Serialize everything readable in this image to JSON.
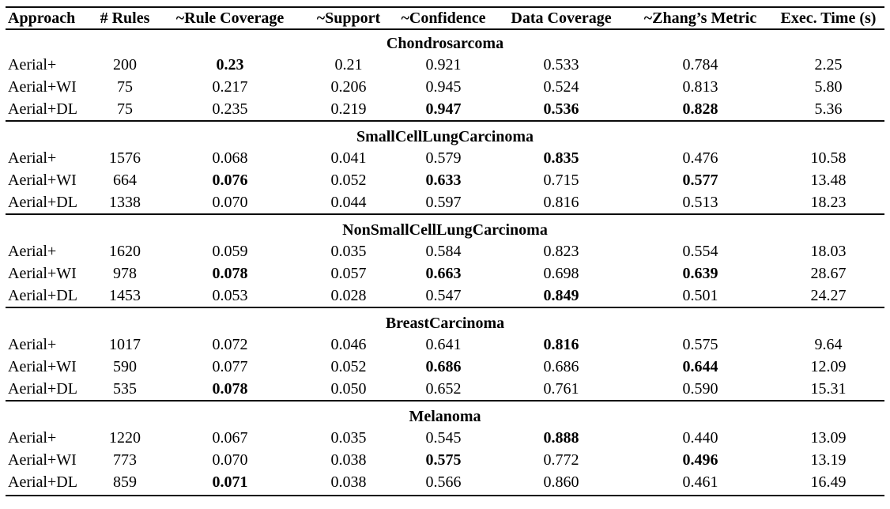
{
  "table": {
    "columns": [
      "Approach",
      "# Rules",
      "~Rule Coverage",
      "~Support",
      "~Confidence",
      "Data Coverage",
      "~Zhang’s Metric",
      "Exec. Time (s)"
    ],
    "sections": [
      {
        "title": "Chondrosarcoma",
        "rows": [
          {
            "cells": [
              "Aerial+",
              "200",
              "0.23",
              "0.21",
              "0.921",
              "0.533",
              "0.784",
              "2.25"
            ],
            "bold": [
              2
            ]
          },
          {
            "cells": [
              "Aerial+WI",
              "75",
              "0.217",
              "0.206",
              "0.945",
              "0.524",
              "0.813",
              "5.80"
            ],
            "bold": []
          },
          {
            "cells": [
              "Aerial+DL",
              "75",
              "0.235",
              "0.219",
              "0.947",
              "0.536",
              "0.828",
              "5.36"
            ],
            "bold": [
              4,
              5,
              6
            ]
          }
        ]
      },
      {
        "title": "SmallCellLungCarcinoma",
        "rows": [
          {
            "cells": [
              "Aerial+",
              "1576",
              "0.068",
              "0.041",
              "0.579",
              "0.835",
              "0.476",
              "10.58"
            ],
            "bold": [
              5
            ]
          },
          {
            "cells": [
              "Aerial+WI",
              "664",
              "0.076",
              "0.052",
              "0.633",
              "0.715",
              "0.577",
              "13.48"
            ],
            "bold": [
              2,
              4,
              6
            ]
          },
          {
            "cells": [
              "Aerial+DL",
              "1338",
              "0.070",
              "0.044",
              "0.597",
              "0.816",
              "0.513",
              "18.23"
            ],
            "bold": []
          }
        ]
      },
      {
        "title": "NonSmallCellLungCarcinoma",
        "rows": [
          {
            "cells": [
              "Aerial+",
              "1620",
              "0.059",
              "0.035",
              "0.584",
              "0.823",
              "0.554",
              "18.03"
            ],
            "bold": []
          },
          {
            "cells": [
              "Aerial+WI",
              "978",
              "0.078",
              "0.057",
              "0.663",
              "0.698",
              "0.639",
              "28.67"
            ],
            "bold": [
              2,
              4,
              6
            ]
          },
          {
            "cells": [
              "Aerial+DL",
              "1453",
              "0.053",
              "0.028",
              "0.547",
              "0.849",
              "0.501",
              "24.27"
            ],
            "bold": [
              5
            ]
          }
        ]
      },
      {
        "title": "BreastCarcinoma",
        "rows": [
          {
            "cells": [
              "Aerial+",
              "1017",
              "0.072",
              "0.046",
              "0.641",
              "0.816",
              "0.575",
              "9.64"
            ],
            "bold": [
              5
            ]
          },
          {
            "cells": [
              "Aerial+WI",
              "590",
              "0.077",
              "0.052",
              "0.686",
              "0.686",
              "0.644",
              "12.09"
            ],
            "bold": [
              4,
              6
            ]
          },
          {
            "cells": [
              "Aerial+DL",
              "535",
              "0.078",
              "0.050",
              "0.652",
              "0.761",
              "0.590",
              "15.31"
            ],
            "bold": [
              2
            ]
          }
        ]
      },
      {
        "title": "Melanoma",
        "rows": [
          {
            "cells": [
              "Aerial+",
              "1220",
              "0.067",
              "0.035",
              "0.545",
              "0.888",
              "0.440",
              "13.09"
            ],
            "bold": [
              5
            ]
          },
          {
            "cells": [
              "Aerial+WI",
              "773",
              "0.070",
              "0.038",
              "0.575",
              "0.772",
              "0.496",
              "13.19"
            ],
            "bold": [
              4,
              6
            ]
          },
          {
            "cells": [
              "Aerial+DL",
              "859",
              "0.071",
              "0.038",
              "0.566",
              "0.860",
              "0.461",
              "16.49"
            ],
            "bold": [
              2
            ]
          }
        ]
      }
    ]
  }
}
